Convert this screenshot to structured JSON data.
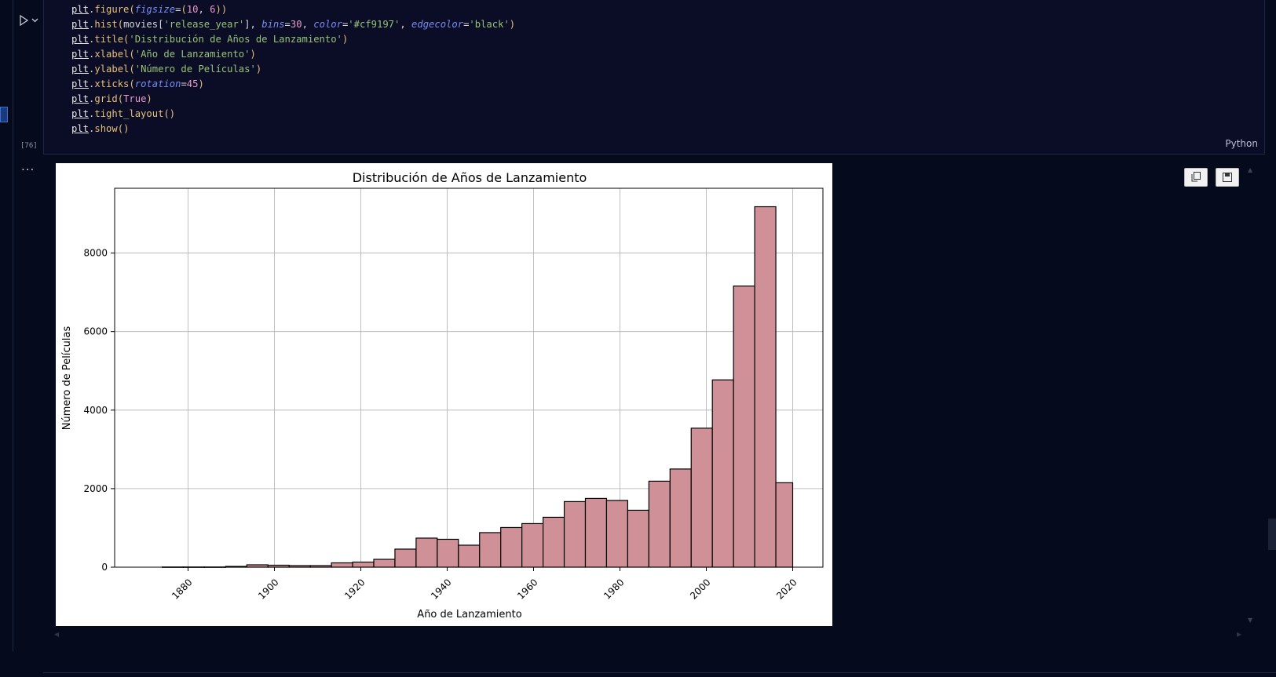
{
  "cell": {
    "execution_count": "[76]",
    "language": "Python",
    "output_more": "...",
    "code_lines": [
      "plt.figure(figsize=(10, 6))",
      "plt.hist(movies['release_year'], bins=30, color='#cf9197', edgecolor='black')",
      "plt.title('Distribución de Años de Lanzamiento')",
      "plt.xlabel('Año de Lanzamiento')",
      "plt.ylabel('Número de Películas')",
      "plt.xticks(rotation=45)",
      "plt.grid(True)",
      "plt.tight_layout()",
      "plt.show()"
    ]
  },
  "icons": {
    "run": "play-icon",
    "run_menu": "chevron-down-icon",
    "copy": "copy-icon",
    "save": "save-icon"
  },
  "colors": {
    "bar_fill": "#cf9197",
    "bar_edge": "#000000",
    "editor_bg": "#0b0c26",
    "page_bg": "#050b1c"
  },
  "chart_data": {
    "type": "bar",
    "title": "Distribución de Años de Lanzamiento",
    "xlabel": "Año de Lanzamiento",
    "ylabel": "Número de Películas",
    "xticks": [
      1880,
      1900,
      1920,
      1940,
      1960,
      1980,
      2000,
      2020
    ],
    "yticks": [
      0,
      2000,
      4000,
      6000,
      8000
    ],
    "xlim": [
      1863,
      2027
    ],
    "ylim": [
      0,
      9650
    ],
    "grid": true,
    "bins": [
      {
        "start": 1874.0,
        "end": 1878.9,
        "value": 5
      },
      {
        "start": 1878.9,
        "end": 1883.8,
        "value": 5
      },
      {
        "start": 1883.8,
        "end": 1888.7,
        "value": 5
      },
      {
        "start": 1888.7,
        "end": 1893.6,
        "value": 20
      },
      {
        "start": 1893.6,
        "end": 1898.5,
        "value": 60
      },
      {
        "start": 1898.5,
        "end": 1903.4,
        "value": 50
      },
      {
        "start": 1903.4,
        "end": 1908.3,
        "value": 40
      },
      {
        "start": 1908.3,
        "end": 1913.2,
        "value": 40
      },
      {
        "start": 1913.2,
        "end": 1918.1,
        "value": 110
      },
      {
        "start": 1918.1,
        "end": 1923.0,
        "value": 130
      },
      {
        "start": 1923.0,
        "end": 1927.9,
        "value": 200
      },
      {
        "start": 1927.9,
        "end": 1932.8,
        "value": 460
      },
      {
        "start": 1932.8,
        "end": 1937.7,
        "value": 740
      },
      {
        "start": 1937.7,
        "end": 1942.6,
        "value": 710
      },
      {
        "start": 1942.6,
        "end": 1947.5,
        "value": 560
      },
      {
        "start": 1947.5,
        "end": 1952.4,
        "value": 880
      },
      {
        "start": 1952.4,
        "end": 1957.3,
        "value": 1010
      },
      {
        "start": 1957.3,
        "end": 1962.2,
        "value": 1110
      },
      {
        "start": 1962.2,
        "end": 1967.1,
        "value": 1270
      },
      {
        "start": 1967.1,
        "end": 1972.0,
        "value": 1670
      },
      {
        "start": 1972.0,
        "end": 1976.9,
        "value": 1750
      },
      {
        "start": 1976.9,
        "end": 1981.8,
        "value": 1700
      },
      {
        "start": 1981.8,
        "end": 1986.7,
        "value": 1450
      },
      {
        "start": 1986.7,
        "end": 1991.6,
        "value": 2190
      },
      {
        "start": 1991.6,
        "end": 1996.5,
        "value": 2500
      },
      {
        "start": 1996.5,
        "end": 2001.4,
        "value": 3540
      },
      {
        "start": 2001.4,
        "end": 2006.3,
        "value": 4770
      },
      {
        "start": 2006.3,
        "end": 2011.2,
        "value": 7160
      },
      {
        "start": 2011.2,
        "end": 2016.1,
        "value": 9180
      },
      {
        "start": 2016.1,
        "end": 2020.0,
        "value": 2150
      }
    ]
  }
}
